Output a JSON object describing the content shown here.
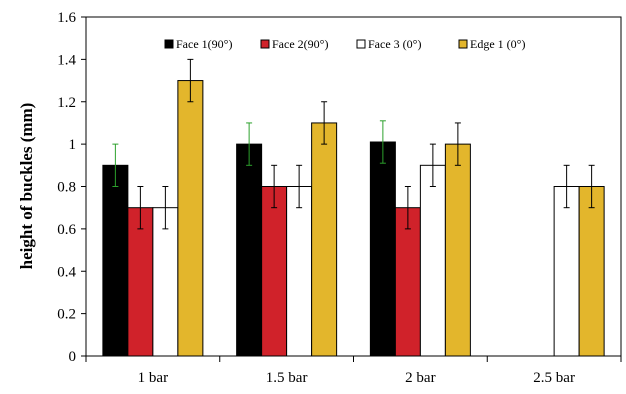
{
  "chart_data": {
    "type": "bar",
    "categories": [
      "1 bar",
      "1.5 bar",
      "2 bar",
      "2.5 bar"
    ],
    "series": [
      {
        "name": "Face 1(90°)",
        "color": "#000000",
        "values": [
          0.9,
          1.0,
          1.01,
          null
        ],
        "errors": [
          0.1,
          0.1,
          0.1,
          null
        ],
        "error_color": "#2ca02c"
      },
      {
        "name": "Face 2(90°)",
        "color": "#d0222a",
        "values": [
          0.7,
          0.8,
          0.7,
          null
        ],
        "errors": [
          0.1,
          0.1,
          0.1,
          null
        ],
        "error_color": "#000000"
      },
      {
        "name": "Face 3 (0°)",
        "color": "#ffffff",
        "values": [
          0.7,
          0.8,
          0.9,
          0.8
        ],
        "errors": [
          0.1,
          0.1,
          0.1,
          0.1
        ],
        "error_color": "#000000"
      },
      {
        "name": "Edge 1 (0°)",
        "color": "#e3b62c",
        "values": [
          1.3,
          1.1,
          1.0,
          0.8
        ],
        "errors": [
          0.1,
          0.1,
          0.1,
          0.1
        ],
        "error_color": "#000000"
      }
    ],
    "ylabel": "height of buckles (mm)",
    "xlabel": "",
    "ylim": [
      0,
      1.6
    ],
    "yticks": [
      "0",
      "0.2",
      "0.4",
      "0.6",
      "0.8",
      "1",
      "1.2",
      "1.4",
      "1.6"
    ],
    "legend_position": "top-center",
    "grid": false
  }
}
